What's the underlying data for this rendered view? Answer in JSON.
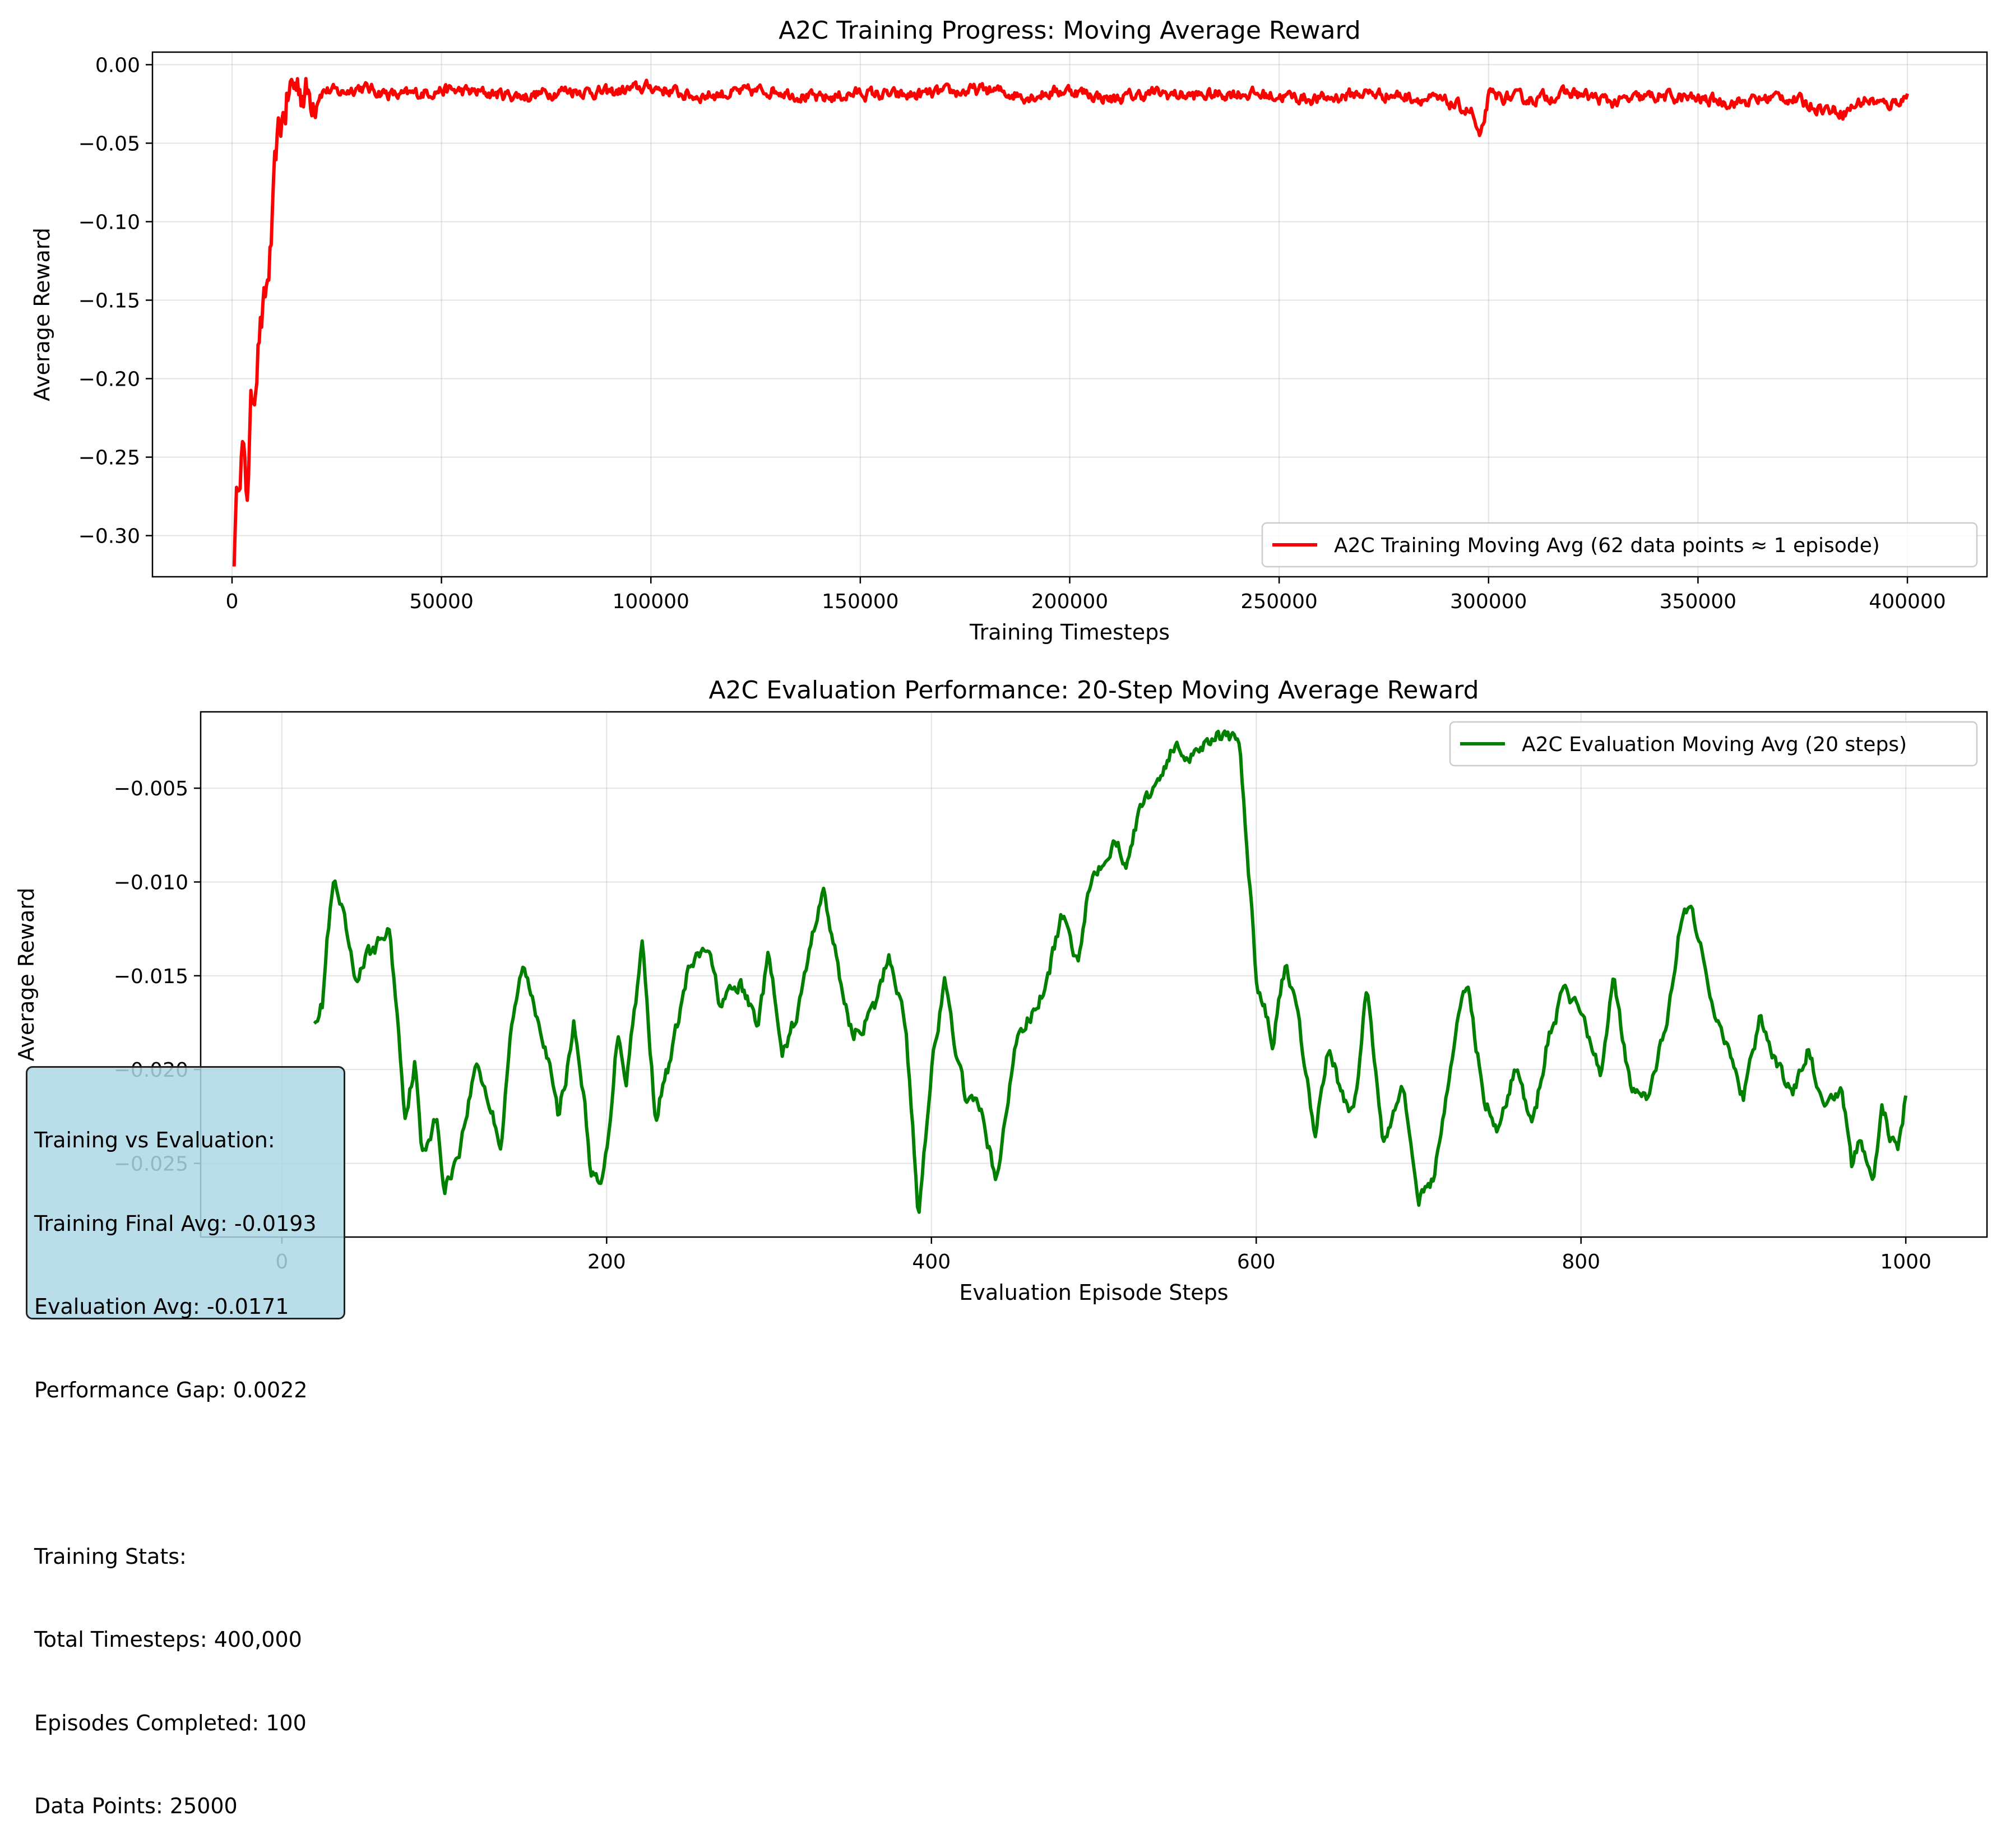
{
  "chart_data": [
    {
      "type": "line",
      "title": "A2C Training Progress: Moving Average Reward",
      "xlabel": "Training Timesteps",
      "ylabel": "Average Reward",
      "xlim": [
        -19000,
        419000
      ],
      "ylim": [
        -0.3262,
        0.008
      ],
      "xticks": [
        0,
        50000,
        100000,
        150000,
        200000,
        250000,
        300000,
        350000,
        400000
      ],
      "xtick_labels": [
        "0",
        "50000",
        "100000",
        "150000",
        "200000",
        "250000",
        "300000",
        "350000",
        "400000"
      ],
      "yticks": [
        0.0,
        -0.05,
        -0.1,
        -0.15,
        -0.2,
        -0.25,
        -0.3
      ],
      "ytick_labels": [
        "0.00",
        "−0.05",
        "−0.10",
        "−0.15",
        "−0.20",
        "−0.25",
        "−0.30"
      ],
      "grid": true,
      "legend_position": "lower-right",
      "series": [
        {
          "name": "A2C Training Moving Avg (62 data points ≈ 1 episode)",
          "color": "#ff0000",
          "x": [
            500,
            1500,
            2500,
            3500,
            4500,
            5500,
            6500,
            7500,
            8500,
            9500,
            10500,
            11500,
            12500,
            14000,
            16000,
            18000,
            22000,
            26000,
            30000,
            40000,
            50000,
            60000,
            70000,
            80000,
            90000,
            100000,
            110000,
            120000,
            130000,
            140000,
            150000,
            160000,
            170000,
            180000,
            190000,
            200000,
            210000,
            220000,
            230000,
            240000,
            250000,
            260000,
            270000,
            280000,
            290000,
            296000,
            298000,
            300000,
            310000,
            320000,
            330000,
            340000,
            350000,
            360000,
            370000,
            380000,
            385000,
            390000,
            395000,
            400000
          ],
          "y": [
            -0.31,
            -0.26,
            -0.24,
            -0.28,
            -0.22,
            -0.2,
            -0.17,
            -0.16,
            -0.14,
            -0.11,
            -0.06,
            -0.04,
            -0.03,
            -0.015,
            -0.012,
            -0.02,
            -0.016,
            -0.018,
            -0.014,
            -0.02,
            -0.016,
            -0.018,
            -0.02,
            -0.016,
            -0.018,
            -0.014,
            -0.02,
            -0.018,
            -0.016,
            -0.022,
            -0.018,
            -0.02,
            -0.018,
            -0.016,
            -0.02,
            -0.016,
            -0.022,
            -0.018,
            -0.02,
            -0.018,
            -0.02,
            -0.022,
            -0.018,
            -0.02,
            -0.024,
            -0.03,
            -0.05,
            -0.02,
            -0.022,
            -0.018,
            -0.024,
            -0.02,
            -0.022,
            -0.024,
            -0.02,
            -0.028,
            -0.03,
            -0.022,
            -0.026,
            -0.02
          ]
        }
      ]
    },
    {
      "type": "line",
      "title": "A2C Evaluation Performance: 20-Step Moving Average Reward",
      "xlabel": "Evaluation Episode Steps",
      "ylabel": "Average Reward",
      "xlim": [
        -50,
        1050
      ],
      "ylim": [
        -0.02893,
        -0.00093
      ],
      "xticks": [
        0,
        200,
        400,
        600,
        800,
        1000
      ],
      "xtick_labels": [
        "0",
        "200",
        "400",
        "600",
        "800",
        "1000"
      ],
      "yticks": [
        -0.005,
        -0.01,
        -0.015,
        -0.02,
        -0.025
      ],
      "ytick_labels": [
        "−0.005",
        "−0.010",
        "−0.015",
        "−0.020",
        "−0.025"
      ],
      "grid": true,
      "legend_position": "upper-right",
      "series": [
        {
          "name": "A2C Evaluation Moving Avg (20 steps)",
          "color": "#008000",
          "x": [
            20,
            25,
            28,
            32,
            38,
            45,
            52,
            58,
            66,
            70,
            76,
            82,
            86,
            95,
            100,
            110,
            120,
            135,
            140,
            148,
            155,
            162,
            170,
            176,
            180,
            186,
            190,
            196,
            200,
            207,
            212,
            222,
            230,
            240,
            250,
            262,
            270,
            282,
            293,
            300,
            308,
            318,
            333,
            345,
            352,
            365,
            374,
            384,
            392,
            400,
            408,
            420,
            432,
            440,
            452,
            470,
            480,
            490,
            495,
            500,
            512,
            520,
            530,
            538,
            545,
            550,
            556,
            562,
            568,
            575,
            590,
            600,
            610,
            618,
            626,
            636,
            645,
            652,
            660,
            668,
            678,
            690,
            700,
            710,
            720,
            730,
            740,
            750,
            760,
            770,
            780,
            790,
            800,
            812,
            820,
            830,
            840,
            852,
            862,
            868,
            876,
            888,
            900,
            910,
            920,
            930,
            940,
            950,
            960,
            967,
            972,
            980,
            985,
            990,
            995,
            1000
          ],
          "y": [
            -0.0172,
            -0.0165,
            -0.013,
            -0.0101,
            -0.012,
            -0.0153,
            -0.014,
            -0.0135,
            -0.0125,
            -0.016,
            -0.0225,
            -0.0195,
            -0.0245,
            -0.0225,
            -0.0265,
            -0.024,
            -0.0195,
            -0.024,
            -0.0188,
            -0.0145,
            -0.0163,
            -0.0185,
            -0.0225,
            -0.0198,
            -0.0175,
            -0.0215,
            -0.0252,
            -0.0265,
            -0.0245,
            -0.0178,
            -0.0205,
            -0.0132,
            -0.0225,
            -0.0192,
            -0.0148,
            -0.0135,
            -0.0165,
            -0.0155,
            -0.0175,
            -0.0138,
            -0.0195,
            -0.0168,
            -0.0102,
            -0.0158,
            -0.0182,
            -0.0168,
            -0.0138,
            -0.0175,
            -0.0278,
            -0.0198,
            -0.0155,
            -0.0212,
            -0.0225,
            -0.0262,
            -0.0185,
            -0.0158,
            -0.0118,
            -0.0142,
            -0.0112,
            -0.0095,
            -0.0078,
            -0.0088,
            -0.0058,
            -0.0048,
            -0.0035,
            -0.0028,
            -0.0032,
            -0.003,
            -0.0026,
            -0.002,
            -0.0028,
            -0.015,
            -0.0185,
            -0.0145,
            -0.0175,
            -0.0235,
            -0.0185,
            -0.0212,
            -0.0225,
            -0.0155,
            -0.0238,
            -0.0205,
            -0.027,
            -0.0255,
            -0.0195,
            -0.0152,
            -0.0215,
            -0.0232,
            -0.0198,
            -0.0232,
            -0.0182,
            -0.0158,
            -0.0168,
            -0.0205,
            -0.0148,
            -0.0208,
            -0.0218,
            -0.0178,
            -0.0118,
            -0.0112,
            -0.0145,
            -0.0185,
            -0.0215,
            -0.0175,
            -0.0195,
            -0.0215,
            -0.0188,
            -0.0225,
            -0.0208,
            -0.0252,
            -0.0238,
            -0.0262,
            -0.0218,
            -0.0235,
            -0.0245,
            -0.0215
          ]
        }
      ]
    }
  ],
  "stats_box": {
    "lines": [
      "Training vs Evaluation:",
      "Training Final Avg: -0.0193",
      "Evaluation Avg: -0.0171",
      "Performance Gap: 0.0022",
      "",
      "Training Stats:",
      "Total Timesteps: 400,000",
      "Episodes Completed: 100",
      "Data Points: 25000"
    ]
  }
}
